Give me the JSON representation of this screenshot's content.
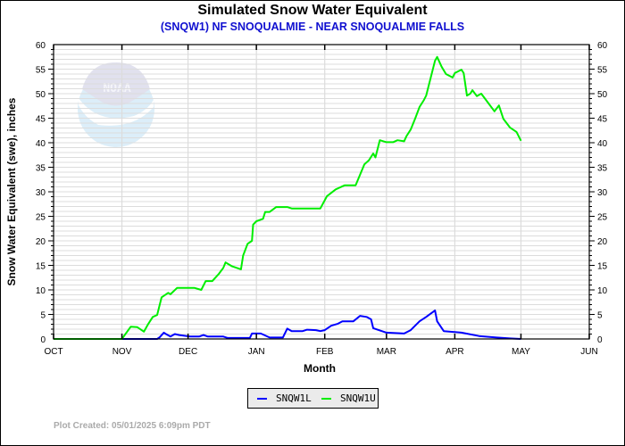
{
  "chart_data": {
    "type": "line",
    "title": "Simulated Snow Water Equivalent",
    "subtitle": "(SNQW1) NF SNOQUALMIE - NEAR SNOQUALMIE FALLS",
    "xlabel": "Month",
    "ylabel": "Snow Water Equivalent (swe),  inches",
    "x_units": "days since Oct 1",
    "xlim": [
      0,
      243
    ],
    "ylim": [
      0,
      60
    ],
    "yticks": [
      0,
      5,
      10,
      15,
      20,
      25,
      30,
      35,
      40,
      45,
      50,
      55,
      60
    ],
    "xticks": [
      {
        "label": "OCT",
        "day": 0
      },
      {
        "label": "NOV",
        "day": 31
      },
      {
        "label": "DEC",
        "day": 61
      },
      {
        "label": "JAN",
        "day": 92
      },
      {
        "label": "FEB",
        "day": 123
      },
      {
        "label": "MAR",
        "day": 151
      },
      {
        "label": "APR",
        "day": 182
      },
      {
        "label": "MAY",
        "day": 212
      },
      {
        "label": "JUN",
        "day": 243
      }
    ],
    "grid": true,
    "legend_position": "bottom-center",
    "series": [
      {
        "name": "SNQW1L",
        "color": "#0000ff",
        "points": [
          [
            0,
            0
          ],
          [
            47,
            0
          ],
          [
            48,
            0.3
          ],
          [
            50,
            1.3
          ],
          [
            51,
            1.0
          ],
          [
            53,
            0.5
          ],
          [
            55,
            1.0
          ],
          [
            57,
            0.8
          ],
          [
            62,
            0.5
          ],
          [
            66,
            0.5
          ],
          [
            68,
            0.8
          ],
          [
            70,
            0.5
          ],
          [
            77,
            0.5
          ],
          [
            79,
            0.2
          ],
          [
            89,
            0.2
          ],
          [
            90,
            1.1
          ],
          [
            94,
            1.1
          ],
          [
            98,
            0.3
          ],
          [
            104,
            0.3
          ],
          [
            106,
            2.1
          ],
          [
            108,
            1.6
          ],
          [
            113,
            1.6
          ],
          [
            115,
            1.9
          ],
          [
            119,
            1.8
          ],
          [
            121,
            1.6
          ],
          [
            123,
            1.8
          ],
          [
            126,
            2.7
          ],
          [
            129,
            3.1
          ],
          [
            131,
            3.6
          ],
          [
            136,
            3.6
          ],
          [
            139,
            4.7
          ],
          [
            142,
            4.5
          ],
          [
            144,
            4.0
          ],
          [
            145,
            2.2
          ],
          [
            151,
            1.3
          ],
          [
            159,
            1.1
          ],
          [
            162,
            1.8
          ],
          [
            166,
            3.6
          ],
          [
            169,
            4.5
          ],
          [
            173,
            5.8
          ],
          [
            174,
            3.6
          ],
          [
            177,
            1.6
          ],
          [
            185,
            1.3
          ],
          [
            193,
            0.6
          ],
          [
            201,
            0.3
          ],
          [
            207,
            0.1
          ],
          [
            212,
            0
          ]
        ]
      },
      {
        "name": "SNQW1U",
        "color": "#00ee00",
        "points": [
          [
            0,
            0
          ],
          [
            31,
            0
          ],
          [
            35,
            2.5
          ],
          [
            38,
            2.4
          ],
          [
            41,
            1.5
          ],
          [
            43,
            3.1
          ],
          [
            45,
            4.5
          ],
          [
            47,
            4.9
          ],
          [
            49,
            8.5
          ],
          [
            52,
            9.4
          ],
          [
            53,
            9.1
          ],
          [
            56,
            10.4
          ],
          [
            64,
            10.4
          ],
          [
            67,
            10.0
          ],
          [
            69,
            11.8
          ],
          [
            72,
            11.8
          ],
          [
            75,
            13.3
          ],
          [
            77,
            14.5
          ],
          [
            78,
            15.6
          ],
          [
            81,
            14.8
          ],
          [
            85,
            14.2
          ],
          [
            86,
            17.0
          ],
          [
            88,
            19.4
          ],
          [
            90,
            20.0
          ],
          [
            90.5,
            23.3
          ],
          [
            92,
            24.0
          ],
          [
            95,
            24.5
          ],
          [
            96,
            25.9
          ],
          [
            98,
            25.9
          ],
          [
            101,
            26.9
          ],
          [
            106,
            26.9
          ],
          [
            108,
            26.6
          ],
          [
            121,
            26.6
          ],
          [
            124,
            29.1
          ],
          [
            128,
            30.5
          ],
          [
            132,
            31.3
          ],
          [
            137,
            31.3
          ],
          [
            141,
            35.6
          ],
          [
            143,
            36.4
          ],
          [
            145,
            37.8
          ],
          [
            146,
            37.0
          ],
          [
            148,
            40.5
          ],
          [
            151,
            40.1
          ],
          [
            154,
            40.1
          ],
          [
            156,
            40.5
          ],
          [
            159,
            40.3
          ],
          [
            160,
            41.3
          ],
          [
            162,
            42.7
          ],
          [
            164,
            44.9
          ],
          [
            166,
            47.3
          ],
          [
            168,
            48.7
          ],
          [
            169,
            49.6
          ],
          [
            171,
            53.1
          ],
          [
            173,
            56.7
          ],
          [
            174,
            57.5
          ],
          [
            176,
            55.5
          ],
          [
            178,
            54.0
          ],
          [
            181,
            53.3
          ],
          [
            182,
            54.2
          ],
          [
            185,
            54.9
          ],
          [
            186,
            54.2
          ],
          [
            187.5,
            49.6
          ],
          [
            189,
            50.0
          ],
          [
            190,
            50.7
          ],
          [
            192,
            49.5
          ],
          [
            194,
            50.0
          ],
          [
            197,
            48.2
          ],
          [
            200,
            46.4
          ],
          [
            202,
            47.6
          ],
          [
            204,
            44.9
          ],
          [
            207,
            43.1
          ],
          [
            210,
            42.2
          ],
          [
            212,
            40.4
          ]
        ]
      }
    ]
  },
  "logo_text": "NOAA",
  "footer": "Plot Created: 05/01/2025 6:09pm PDT"
}
